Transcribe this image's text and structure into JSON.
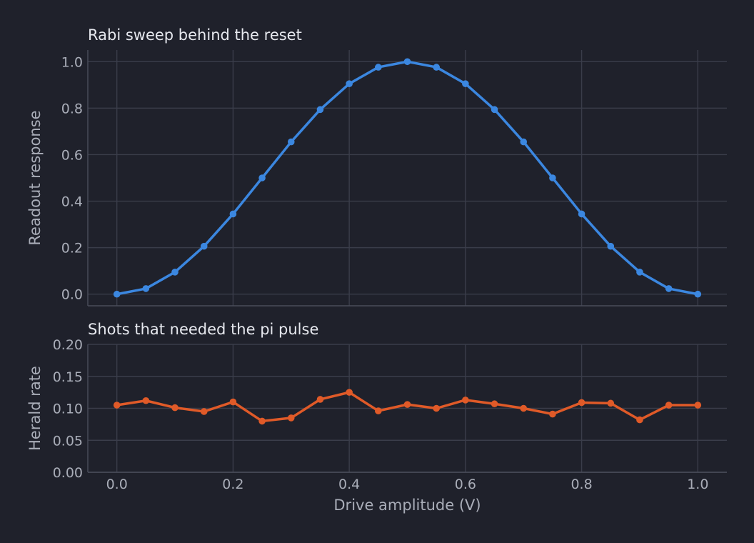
{
  "chart_data": [
    {
      "type": "line",
      "title": "Rabi sweep behind the reset",
      "xlabel": "",
      "ylabel": "Readout response",
      "xlim": [
        -0.05,
        1.05
      ],
      "ylim": [
        -0.05,
        1.05
      ],
      "xticks": [
        0.0,
        0.2,
        0.4,
        0.6,
        0.8,
        1.0
      ],
      "xtick_labels": [],
      "yticks": [
        0.0,
        0.2,
        0.4,
        0.6,
        0.8,
        1.0
      ],
      "ytick_labels": [
        "0.0",
        "0.2",
        "0.4",
        "0.6",
        "0.8",
        "1.0"
      ],
      "grid": true,
      "x": [
        0.0,
        0.05,
        0.1,
        0.15,
        0.2,
        0.25,
        0.3,
        0.35,
        0.4,
        0.45,
        0.5,
        0.55,
        0.6,
        0.65,
        0.7,
        0.75,
        0.8,
        0.85,
        0.9,
        0.95,
        1.0
      ],
      "series": [
        {
          "color": "#3b87e0",
          "values": [
            0.0,
            0.024,
            0.095,
            0.206,
            0.345,
            0.5,
            0.655,
            0.794,
            0.905,
            0.976,
            1.0,
            0.976,
            0.905,
            0.794,
            0.655,
            0.5,
            0.345,
            0.206,
            0.095,
            0.024,
            0.0
          ]
        }
      ]
    },
    {
      "type": "line",
      "title": "Shots that needed the pi pulse",
      "xlabel": "Drive amplitude (V)",
      "ylabel": "Herald rate",
      "xlim": [
        -0.05,
        1.05
      ],
      "ylim": [
        0.0,
        0.2
      ],
      "xticks": [
        0.0,
        0.2,
        0.4,
        0.6,
        0.8,
        1.0
      ],
      "xtick_labels": [
        "0.0",
        "0.2",
        "0.4",
        "0.6",
        "0.8",
        "1.0"
      ],
      "yticks": [
        0.0,
        0.05,
        0.1,
        0.15,
        0.2
      ],
      "ytick_labels": [
        "0.00",
        "0.05",
        "0.10",
        "0.15",
        "0.20"
      ],
      "grid": true,
      "x": [
        0.0,
        0.05,
        0.1,
        0.15,
        0.2,
        0.25,
        0.3,
        0.35,
        0.4,
        0.45,
        0.5,
        0.55,
        0.6,
        0.65,
        0.7,
        0.75,
        0.8,
        0.85,
        0.9,
        0.95,
        1.0
      ],
      "series": [
        {
          "color": "#e05a28",
          "values": [
            0.105,
            0.112,
            0.101,
            0.095,
            0.11,
            0.08,
            0.085,
            0.114,
            0.125,
            0.096,
            0.106,
            0.1,
            0.113,
            0.107,
            0.1,
            0.091,
            0.109,
            0.108,
            0.082,
            0.105,
            0.105
          ]
        }
      ]
    }
  ]
}
